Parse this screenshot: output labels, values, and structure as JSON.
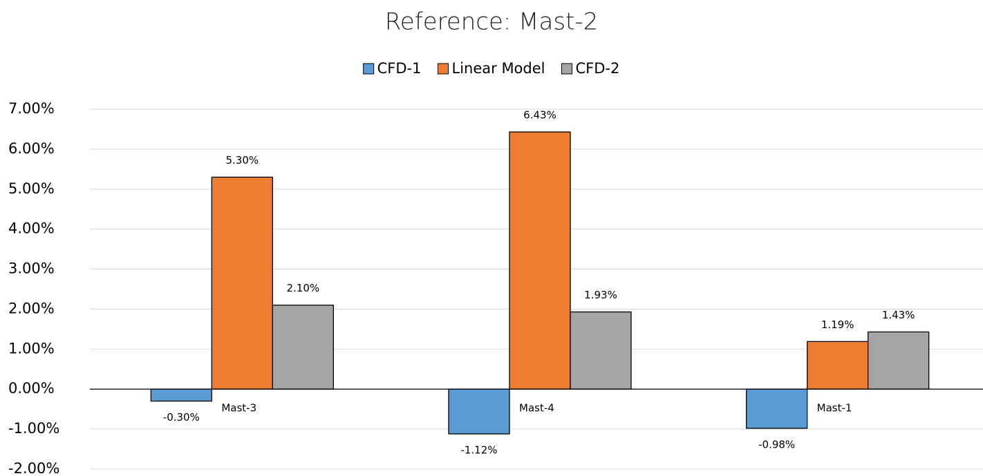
{
  "chart_data": {
    "type": "bar",
    "title": "Reference: Mast-2",
    "categories": [
      "Mast-3",
      "Mast-4",
      "Mast-1"
    ],
    "series": [
      {
        "name": "CFD-1",
        "color": "#5b9bd5",
        "values": [
          -0.3,
          -1.12,
          -0.98
        ],
        "value_labels": [
          "-0.30%",
          "-1.12%",
          "-0.98%"
        ]
      },
      {
        "name": "Linear Model",
        "color": "#ed7d31",
        "values": [
          5.3,
          6.43,
          1.19
        ],
        "value_labels": [
          "5.30%",
          "6.43%",
          "1.19%"
        ]
      },
      {
        "name": "CFD-2",
        "color": "#a5a5a5",
        "values": [
          2.1,
          1.93,
          1.43
        ],
        "value_labels": [
          "2.10%",
          "1.93%",
          "1.43%"
        ]
      }
    ],
    "ylim": [
      -2,
      7
    ],
    "yticks": [
      {
        "value": -2,
        "label": "-2.00%"
      },
      {
        "value": -1,
        "label": "-1.00%"
      },
      {
        "value": 0,
        "label": "0.00%"
      },
      {
        "value": 1,
        "label": "1.00%"
      },
      {
        "value": 2,
        "label": "2.00%"
      },
      {
        "value": 3,
        "label": "3.00%"
      },
      {
        "value": 4,
        "label": "4.00%"
      },
      {
        "value": 5,
        "label": "5.00%"
      },
      {
        "value": 6,
        "label": "6.00%"
      },
      {
        "value": 7,
        "label": "7.00%"
      }
    ],
    "grid": true,
    "legend": "top"
  }
}
